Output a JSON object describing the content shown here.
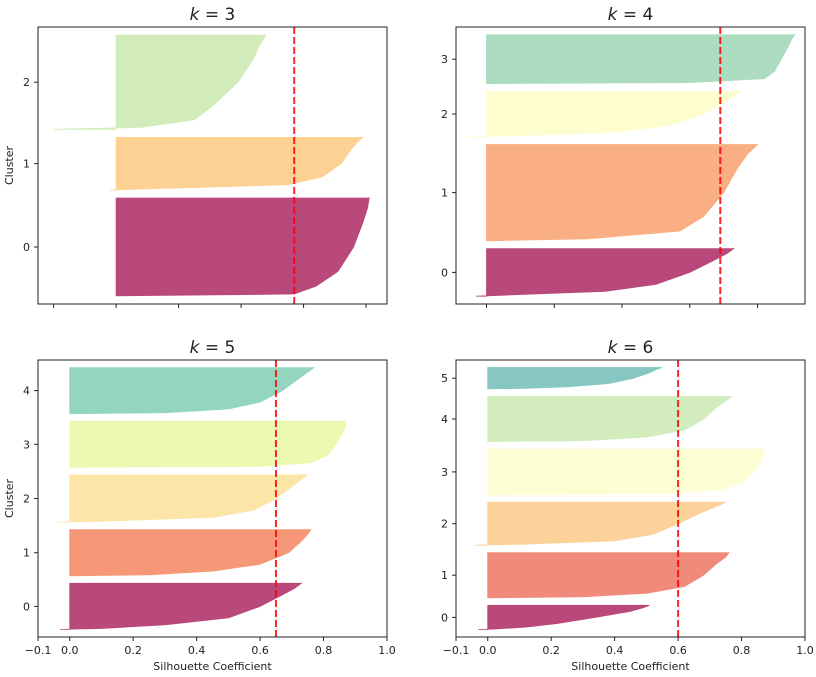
{
  "chart_data": [
    {
      "type": "area",
      "title": "k = 3",
      "title_var": "k",
      "title_value": "3",
      "ylabel": "Cluster",
      "xlabel": "",
      "xlim": [
        -0.25,
        0.867
      ],
      "xticks": [
        -0.2,
        0.0,
        0.2,
        0.4,
        0.6,
        0.8
      ],
      "show_xtick_labels": false,
      "silhouette_score": 0.57,
      "quantile_levels": [
        0,
        0.02,
        0.1,
        0.25,
        0.5,
        0.75,
        0.9,
        1
      ],
      "clusters": [
        {
          "label": "0",
          "size": 800,
          "color": "#b9497a",
          "coefficients": [
            0.0,
            0.57,
            0.64,
            0.71,
            0.76,
            0.79,
            0.805,
            0.81
          ]
        },
        {
          "label": "1",
          "size": 430,
          "color": "#fdd093",
          "coefficients": [
            -0.02,
            0.1,
            0.55,
            0.66,
            0.72,
            0.75,
            0.77,
            0.79
          ]
        },
        {
          "label": "2",
          "size": 770,
          "color": "#d2ebbb",
          "coefficients": [
            -0.2,
            0.08,
            0.25,
            0.31,
            0.39,
            0.44,
            0.46,
            0.48
          ]
        }
      ]
    },
    {
      "type": "area",
      "title": "k = 4",
      "title_var": "k",
      "title_value": "4",
      "ylabel": "",
      "xlabel": "",
      "xlim": [
        -0.09,
        0.94
      ],
      "xticks": [
        0.0,
        0.2,
        0.4,
        0.6,
        0.8
      ],
      "show_xtick_labels": false,
      "silhouette_score": 0.69,
      "quantile_levels": [
        0,
        0.02,
        0.1,
        0.25,
        0.5,
        0.75,
        0.9,
        1
      ],
      "clusters": [
        {
          "label": "0",
          "size": 400,
          "color": "#b9497a",
          "coefficients": [
            -0.03,
            0.05,
            0.35,
            0.5,
            0.6,
            0.67,
            0.71,
            0.73
          ]
        },
        {
          "label": "1",
          "size": 810,
          "color": "#f9ae83",
          "coefficients": [
            0.0,
            0.3,
            0.57,
            0.64,
            0.7,
            0.74,
            0.77,
            0.8
          ]
        },
        {
          "label": "2",
          "size": 380,
          "color": "#fefdd0",
          "coefficients": [
            -0.05,
            0.1,
            0.38,
            0.54,
            0.64,
            0.7,
            0.73,
            0.75
          ]
        },
        {
          "label": "3",
          "size": 410,
          "color": "#abdcc0",
          "coefficients": [
            0.0,
            0.6,
            0.82,
            0.85,
            0.87,
            0.89,
            0.9,
            0.91
          ]
        }
      ]
    },
    {
      "type": "area",
      "title": "k = 5",
      "title_var": "k",
      "title_value": "5",
      "ylabel": "Cluster",
      "xlabel": "Silhouette Coefficient",
      "xlim": [
        -0.1,
        1.0
      ],
      "xticks": [
        -0.1,
        0.0,
        0.2,
        0.4,
        0.6,
        0.8,
        1.0
      ],
      "xtick_labels": [
        "−0.1",
        "0.0",
        "0.2",
        "0.4",
        "0.6",
        "0.8",
        "1.0"
      ],
      "show_xtick_labels": true,
      "silhouette_score": 0.65,
      "quantile_levels": [
        0,
        0.02,
        0.1,
        0.25,
        0.5,
        0.75,
        0.9,
        1
      ],
      "clusters": [
        {
          "label": "0",
          "size": 400,
          "color": "#b9497a",
          "coefficients": [
            -0.03,
            0.1,
            0.3,
            0.5,
            0.6,
            0.67,
            0.71,
            0.73
          ]
        },
        {
          "label": "1",
          "size": 400,
          "color": "#f69878",
          "coefficients": [
            0.0,
            0.25,
            0.45,
            0.6,
            0.69,
            0.73,
            0.75,
            0.76
          ]
        },
        {
          "label": "2",
          "size": 410,
          "color": "#fde5a8",
          "coefficients": [
            -0.04,
            0.1,
            0.45,
            0.58,
            0.65,
            0.7,
            0.73,
            0.75
          ]
        },
        {
          "label": "3",
          "size": 400,
          "color": "#edf8b1",
          "coefficients": [
            0.0,
            0.6,
            0.76,
            0.81,
            0.84,
            0.86,
            0.87,
            0.87
          ]
        },
        {
          "label": "4",
          "size": 400,
          "color": "#94d5bd",
          "coefficients": [
            0.0,
            0.3,
            0.5,
            0.6,
            0.67,
            0.72,
            0.75,
            0.77
          ]
        }
      ]
    },
    {
      "type": "area",
      "title": "k = 6",
      "title_var": "k",
      "title_value": "6",
      "ylabel": "",
      "xlabel": "Silhouette Coefficient",
      "xlim": [
        -0.1,
        1.0
      ],
      "xticks": [
        -0.1,
        0.0,
        0.2,
        0.4,
        0.6,
        0.8,
        1.0
      ],
      "xtick_labels": [
        "−0.1",
        "0.0",
        "0.2",
        "0.4",
        "0.6",
        "0.8",
        "1.0"
      ],
      "show_xtick_labels": true,
      "silhouette_score": 0.6,
      "quantile_levels": [
        0,
        0.02,
        0.1,
        0.25,
        0.5,
        0.75,
        0.9,
        1
      ],
      "clusters": [
        {
          "label": "0",
          "size": 215,
          "color": "#b9497a",
          "coefficients": [
            -0.03,
            0.02,
            0.12,
            0.22,
            0.34,
            0.45,
            0.49,
            0.51
          ]
        },
        {
          "label": "1",
          "size": 400,
          "color": "#f08a7b",
          "coefficients": [
            0.0,
            0.3,
            0.5,
            0.62,
            0.68,
            0.72,
            0.75,
            0.76
          ]
        },
        {
          "label": "2",
          "size": 380,
          "color": "#fcd19a",
          "coefficients": [
            -0.04,
            0.1,
            0.4,
            0.52,
            0.6,
            0.67,
            0.72,
            0.75
          ]
        },
        {
          "label": "3",
          "size": 405,
          "color": "#fefed5",
          "coefficients": [
            0.0,
            0.55,
            0.73,
            0.8,
            0.84,
            0.86,
            0.87,
            0.87
          ]
        },
        {
          "label": "4",
          "size": 400,
          "color": "#d3ecbe",
          "coefficients": [
            0.0,
            0.3,
            0.5,
            0.62,
            0.68,
            0.72,
            0.75,
            0.77
          ]
        },
        {
          "label": "5",
          "size": 190,
          "color": "#86c6c3",
          "coefficients": [
            0.0,
            0.1,
            0.25,
            0.38,
            0.46,
            0.51,
            0.53,
            0.55
          ]
        }
      ]
    }
  ],
  "score_line_color": "#ff0000"
}
